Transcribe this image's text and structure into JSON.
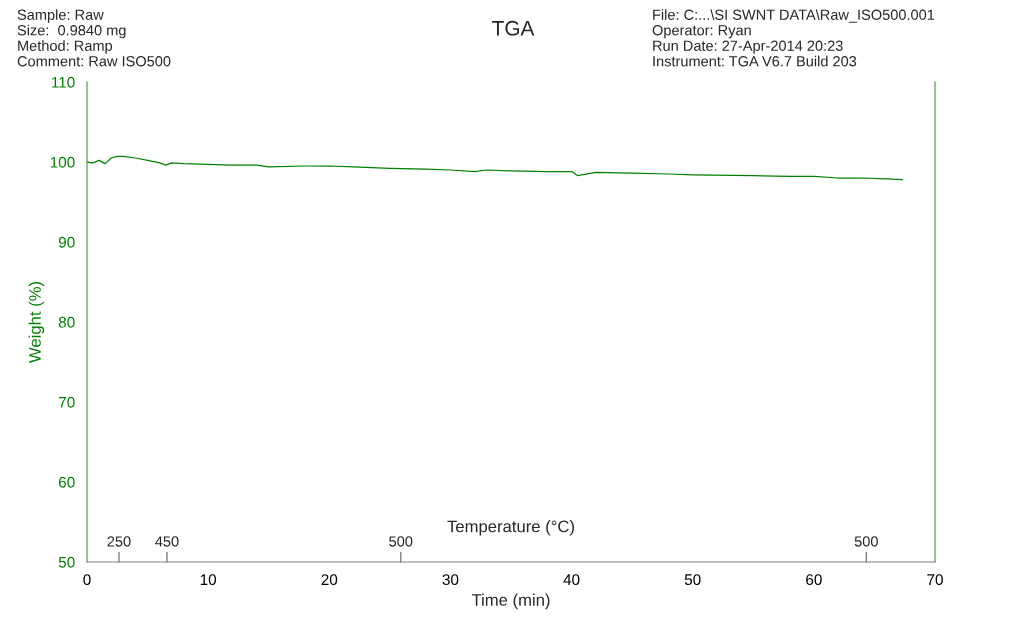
{
  "chart_data": {
    "type": "line",
    "title": "TGA",
    "xlabel": "Time (min)",
    "ylabel": "Weight (%)",
    "x2label": "Temperature (°C)",
    "annotations": [
      "Sample: Raw",
      "Size:  0.9840 mg",
      "Method: Ramp",
      "Comment: Raw ISO500",
      "File: C:...\\SI SWNT DATA\\Raw_ISO500.001",
      "Operator: Ryan",
      "Run Date: 27-Apr-2014 20:23",
      "Instrument: TGA V6.7 Build 203",
      "250",
      "450",
      "500",
      "500"
    ],
    "xlim": [
      0,
      70
    ],
    "xticks": [
      0,
      10,
      20,
      30,
      40,
      50,
      60,
      70
    ],
    "ylim": [
      50,
      110
    ],
    "yticks": [
      50,
      60,
      70,
      80,
      90,
      100,
      110
    ],
    "grid": false,
    "legend": false,
    "marker": "none",
    "line_style": "solid",
    "series": [
      {
        "color": "#008000",
        "x": [
          0,
          0.5,
          1,
          1.5,
          2,
          2.5,
          3,
          4,
          5,
          6,
          6.5,
          7,
          8,
          10,
          12,
          14,
          15,
          18,
          20,
          22,
          25,
          28,
          30,
          32,
          33,
          35,
          38,
          40,
          40.5,
          42,
          45,
          48,
          50,
          55,
          58,
          60,
          62,
          64,
          66,
          67.3
        ],
        "values": [
          100.0,
          99.9,
          100.2,
          99.8,
          100.5,
          100.7,
          100.7,
          100.5,
          100.2,
          99.9,
          99.6,
          99.9,
          99.8,
          99.7,
          99.6,
          99.6,
          99.4,
          99.5,
          99.5,
          99.4,
          99.2,
          99.1,
          99.0,
          98.8,
          99.0,
          98.9,
          98.8,
          98.8,
          98.3,
          98.7,
          98.6,
          98.5,
          98.4,
          98.3,
          98.2,
          98.2,
          98.0,
          98.0,
          97.9,
          97.8
        ]
      }
    ]
  }
}
